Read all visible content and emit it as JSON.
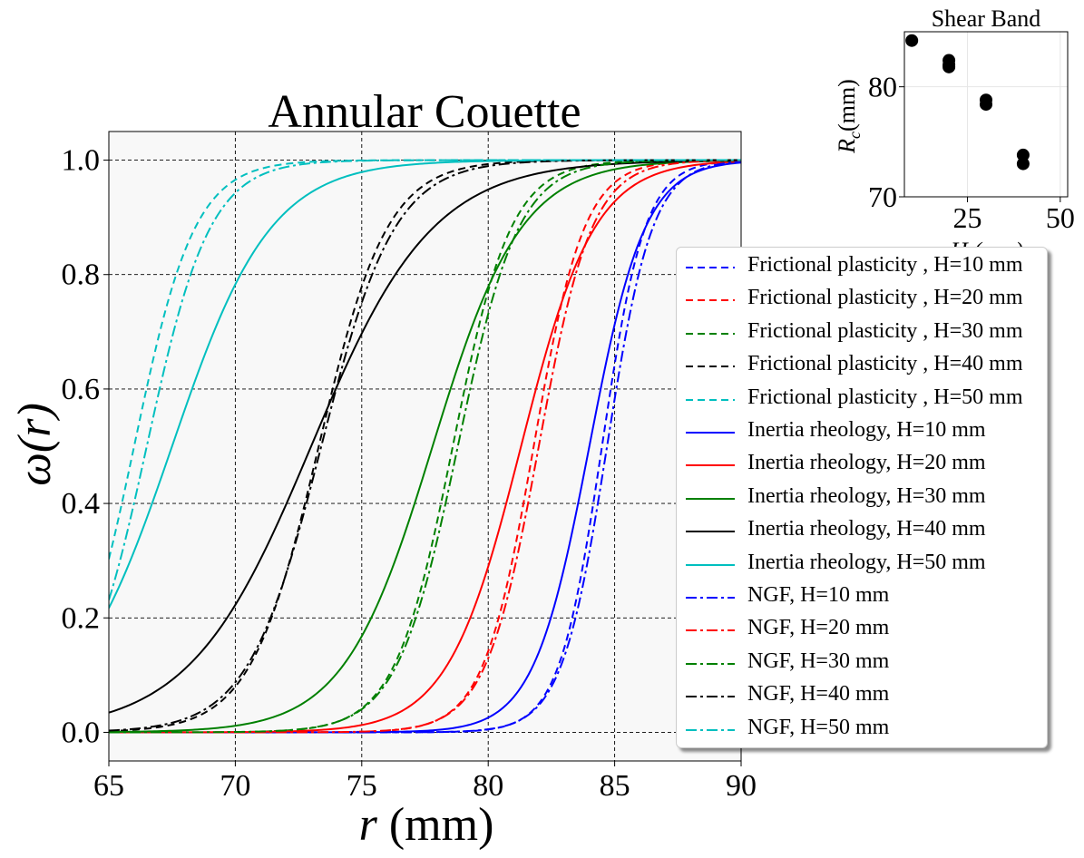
{
  "chart_data": [
    {
      "type": "line",
      "title": "Annular Couette",
      "xlabel_italic": "r",
      "xlabel_rest": " (mm)",
      "ylabel": "ω(r)",
      "xlim": [
        65,
        90
      ],
      "ylim": [
        -0.05,
        1.05
      ],
      "xticks": [
        65,
        70,
        75,
        80,
        85,
        90
      ],
      "yticks": [
        0.0,
        0.2,
        0.4,
        0.6,
        0.8,
        1.0
      ],
      "xtick_labels": [
        "65",
        "70",
        "75",
        "80",
        "85",
        "90"
      ],
      "ytick_labels": [
        "0.0",
        "0.2",
        "0.4",
        "0.6",
        "0.8",
        "1.0"
      ],
      "grid": true,
      "legend_position": "right",
      "series": [
        {
          "name": "Frictional plasticity , H=10 mm",
          "color": "#0000ff",
          "dash": "dashed",
          "center": 84.5,
          "width": 0.85
        },
        {
          "name": "Frictional plasticity , H=20 mm",
          "color": "#ff0000",
          "dash": "dashed",
          "center": 81.8,
          "width": 1.0
        },
        {
          "name": "Frictional plasticity , H=30 mm",
          "color": "#008000",
          "dash": "dashed",
          "center": 78.6,
          "width": 1.15
        },
        {
          "name": "Frictional plasticity , H=40 mm",
          "color": "#000000",
          "dash": "dashed",
          "center": 73.3,
          "width": 1.35
        },
        {
          "name": "Frictional plasticity , H=50 mm",
          "color": "#00bfbf",
          "dash": "dashed",
          "center": 66.0,
          "width": 1.2
        },
        {
          "name": "Inertia rheology, H=10 mm",
          "color": "#0000ff",
          "dash": "solid",
          "center": 84.0,
          "width": 1.1
        },
        {
          "name": "Inertia rheology, H=20 mm",
          "color": "#ff0000",
          "dash": "solid",
          "center": 81.3,
          "width": 1.45
        },
        {
          "name": "Inertia rheology, H=30 mm",
          "color": "#008000",
          "dash": "solid",
          "center": 77.8,
          "width": 1.75
        },
        {
          "name": "Inertia rheology, H=40 mm",
          "color": "#000000",
          "dash": "solid",
          "center": 73.0,
          "width": 2.4
        },
        {
          "name": "Inertia rheology, H=50 mm",
          "color": "#00bfbf",
          "dash": "solid",
          "center": 67.5,
          "width": 1.95
        },
        {
          "name": "NGF, H=10 mm",
          "color": "#0000ff",
          "dash": "dashdot",
          "center": 84.7,
          "width": 0.9
        },
        {
          "name": "NGF, H=20 mm",
          "color": "#ff0000",
          "dash": "dashdot",
          "center": 82.0,
          "width": 1.05
        },
        {
          "name": "NGF, H=30 mm",
          "color": "#008000",
          "dash": "dashdot",
          "center": 78.8,
          "width": 1.2
        },
        {
          "name": "NGF, H=40 mm",
          "color": "#000000",
          "dash": "dashdot",
          "center": 73.4,
          "width": 1.45
        },
        {
          "name": "NGF, H=50 mm",
          "color": "#00bfbf",
          "dash": "dashdot",
          "center": 66.5,
          "width": 1.25
        }
      ]
    },
    {
      "type": "scatter",
      "title": "Shear Band",
      "xlabel": "H (mm)",
      "ylabel": "R_c(mm)",
      "xlim": [
        8,
        52
      ],
      "ylim": [
        70,
        85
      ],
      "xticks": [
        25,
        50
      ],
      "yticks": [
        70,
        80
      ],
      "xtick_labels": [
        "25",
        "50"
      ],
      "ytick_labels": [
        "70",
        "80"
      ],
      "grid": true,
      "points": [
        {
          "x": 10,
          "y": 84.2
        },
        {
          "x": 20,
          "y": 82.4
        },
        {
          "x": 20,
          "y": 82.0
        },
        {
          "x": 20,
          "y": 81.8
        },
        {
          "x": 30,
          "y": 78.8
        },
        {
          "x": 30,
          "y": 78.4
        },
        {
          "x": 40,
          "y": 73.8
        },
        {
          "x": 40,
          "y": 73.0
        }
      ]
    }
  ]
}
